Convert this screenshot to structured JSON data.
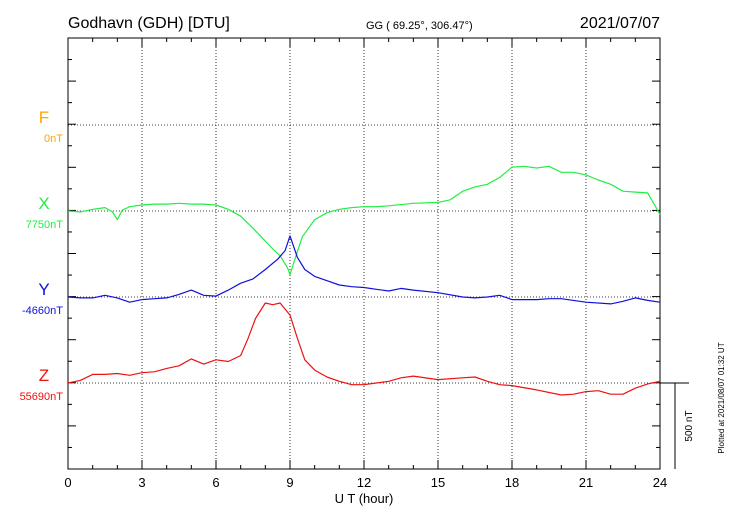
{
  "header": {
    "station": "Godhavn (GDH)  [DTU]",
    "coords": "GG ( 69.25°, 306.47°)",
    "date": "2021/07/07"
  },
  "side_note": "Plotted at 2021/08/07 01:32 UT",
  "scale_bar_label": "500 nT",
  "chart_data": {
    "type": "line",
    "xlabel": "U T (hour)",
    "xlim": [
      0,
      24
    ],
    "x_ticks": [
      "0",
      "3",
      "6",
      "9",
      "12",
      "15",
      "18",
      "21",
      "24"
    ],
    "grid": true,
    "y_scale_nT_per_division": 250,
    "series": [
      {
        "name": "F",
        "baseline_label": "0nT",
        "color": "#ffa500",
        "x": [],
        "y": []
      },
      {
        "name": "X",
        "baseline_label": "7750nT",
        "color": "#22ee44",
        "x": [
          0,
          0.5,
          1,
          1.5,
          1.8,
          2.0,
          2.2,
          2.5,
          3,
          3.5,
          4,
          4.5,
          5,
          5.5,
          6,
          6.5,
          7,
          7.5,
          8,
          8.3,
          8.6,
          8.9,
          9.0,
          9.2,
          9.5,
          10,
          10.5,
          11,
          11.5,
          12,
          12.5,
          13,
          14,
          15,
          15.5,
          16,
          16.5,
          17,
          17.5,
          18,
          18.5,
          19,
          19.5,
          20,
          20.5,
          21,
          21.5,
          22,
          22.5,
          23,
          23.5,
          24
        ],
        "y": [
          7750,
          7745,
          7760,
          7770,
          7745,
          7700,
          7755,
          7775,
          7785,
          7790,
          7790,
          7795,
          7790,
          7790,
          7785,
          7760,
          7720,
          7650,
          7575,
          7530,
          7490,
          7420,
          7380,
          7470,
          7600,
          7700,
          7740,
          7760,
          7770,
          7775,
          7775,
          7780,
          7795,
          7800,
          7815,
          7865,
          7890,
          7905,
          7945,
          8005,
          8010,
          8000,
          8010,
          7975,
          7975,
          7960,
          7930,
          7905,
          7865,
          7860,
          7855,
          7730
        ]
      },
      {
        "name": "Y",
        "baseline_label": "-4660nT",
        "color": "#1010dd",
        "x": [
          0,
          0.5,
          1,
          1.5,
          2,
          2.5,
          3,
          3.5,
          4,
          4.5,
          5,
          5.5,
          6,
          6.5,
          7,
          7.5,
          8,
          8.5,
          8.8,
          9.0,
          9.3,
          9.6,
          10,
          10.5,
          11,
          11.5,
          12,
          12.5,
          13,
          13.5,
          14,
          15,
          16,
          16.5,
          17,
          17.5,
          18,
          18.5,
          19,
          19.5,
          20,
          21,
          22,
          22.5,
          23,
          23.5,
          24
        ],
        "y": [
          -4660,
          -4665,
          -4665,
          -4650,
          -4665,
          -4690,
          -4675,
          -4670,
          -4665,
          -4645,
          -4620,
          -4650,
          -4655,
          -4620,
          -4580,
          -4555,
          -4500,
          -4440,
          -4390,
          -4305,
          -4430,
          -4500,
          -4540,
          -4565,
          -4590,
          -4600,
          -4605,
          -4615,
          -4625,
          -4610,
          -4620,
          -4635,
          -4660,
          -4665,
          -4660,
          -4650,
          -4675,
          -4675,
          -4675,
          -4670,
          -4670,
          -4690,
          -4700,
          -4685,
          -4665,
          -4680,
          -4690
        ]
      },
      {
        "name": "Z",
        "baseline_label": "55690nT",
        "color": "#ee1111",
        "x": [
          0,
          0.5,
          1,
          1.5,
          2,
          2.5,
          3,
          3.5,
          4,
          4.5,
          5,
          5.5,
          6,
          6.5,
          7,
          7.3,
          7.6,
          8,
          8.3,
          8.6,
          9,
          9.3,
          9.6,
          10,
          10.5,
          11,
          11.5,
          12,
          12.5,
          13,
          13.5,
          14,
          15,
          16,
          16.5,
          17,
          17.5,
          18,
          19,
          20,
          20.5,
          21,
          21.5,
          22,
          22.5,
          23,
          23.5,
          24
        ],
        "y": [
          55690,
          55705,
          55740,
          55740,
          55745,
          55735,
          55750,
          55755,
          55775,
          55790,
          55830,
          55800,
          55825,
          55815,
          55850,
          55950,
          56065,
          56155,
          56145,
          56155,
          56085,
          55950,
          55825,
          55765,
          55725,
          55700,
          55680,
          55680,
          55690,
          55700,
          55720,
          55730,
          55710,
          55720,
          55725,
          55700,
          55680,
          55675,
          55650,
          55620,
          55625,
          55640,
          55645,
          55625,
          55625,
          55660,
          55685,
          55700
        ]
      }
    ]
  }
}
